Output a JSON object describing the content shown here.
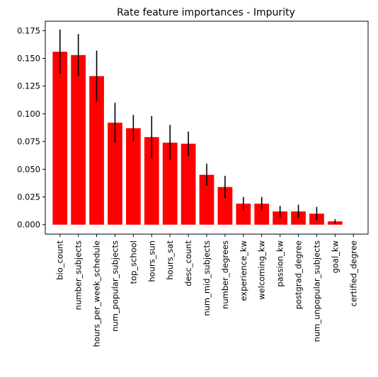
{
  "chart_data": {
    "type": "bar",
    "title": "Rate feature importances - Impurity",
    "xlabel": "",
    "ylabel": "",
    "categories": [
      "bio_count",
      "number_subjects",
      "hours_per_week_schedule",
      "num_popular_subjects",
      "top_school",
      "hours_sun",
      "hours_sat",
      "desc_count",
      "num_mid_subjects",
      "number_degrees",
      "experience_kw",
      "welcoming_kw",
      "passion_kw",
      "postgrad_degree",
      "num_unpopular_subjects",
      "goal_kw",
      "certified_degree"
    ],
    "values": [
      0.156,
      0.153,
      0.134,
      0.092,
      0.087,
      0.079,
      0.074,
      0.073,
      0.045,
      0.034,
      0.019,
      0.019,
      0.012,
      0.012,
      0.01,
      0.003,
      0.0
    ],
    "errors": [
      0.02,
      0.019,
      0.023,
      0.018,
      0.012,
      0.019,
      0.016,
      0.011,
      0.01,
      0.01,
      0.006,
      0.006,
      0.005,
      0.006,
      0.006,
      0.002,
      0.0
    ],
    "ylim": [
      -0.0085,
      0.1835
    ],
    "yticks": [
      "0.000",
      "0.025",
      "0.050",
      "0.075",
      "0.100",
      "0.125",
      "0.150",
      "0.175"
    ],
    "grid": false,
    "legend": "none",
    "bar_color": "#ff0000",
    "error_color": "#000000"
  }
}
